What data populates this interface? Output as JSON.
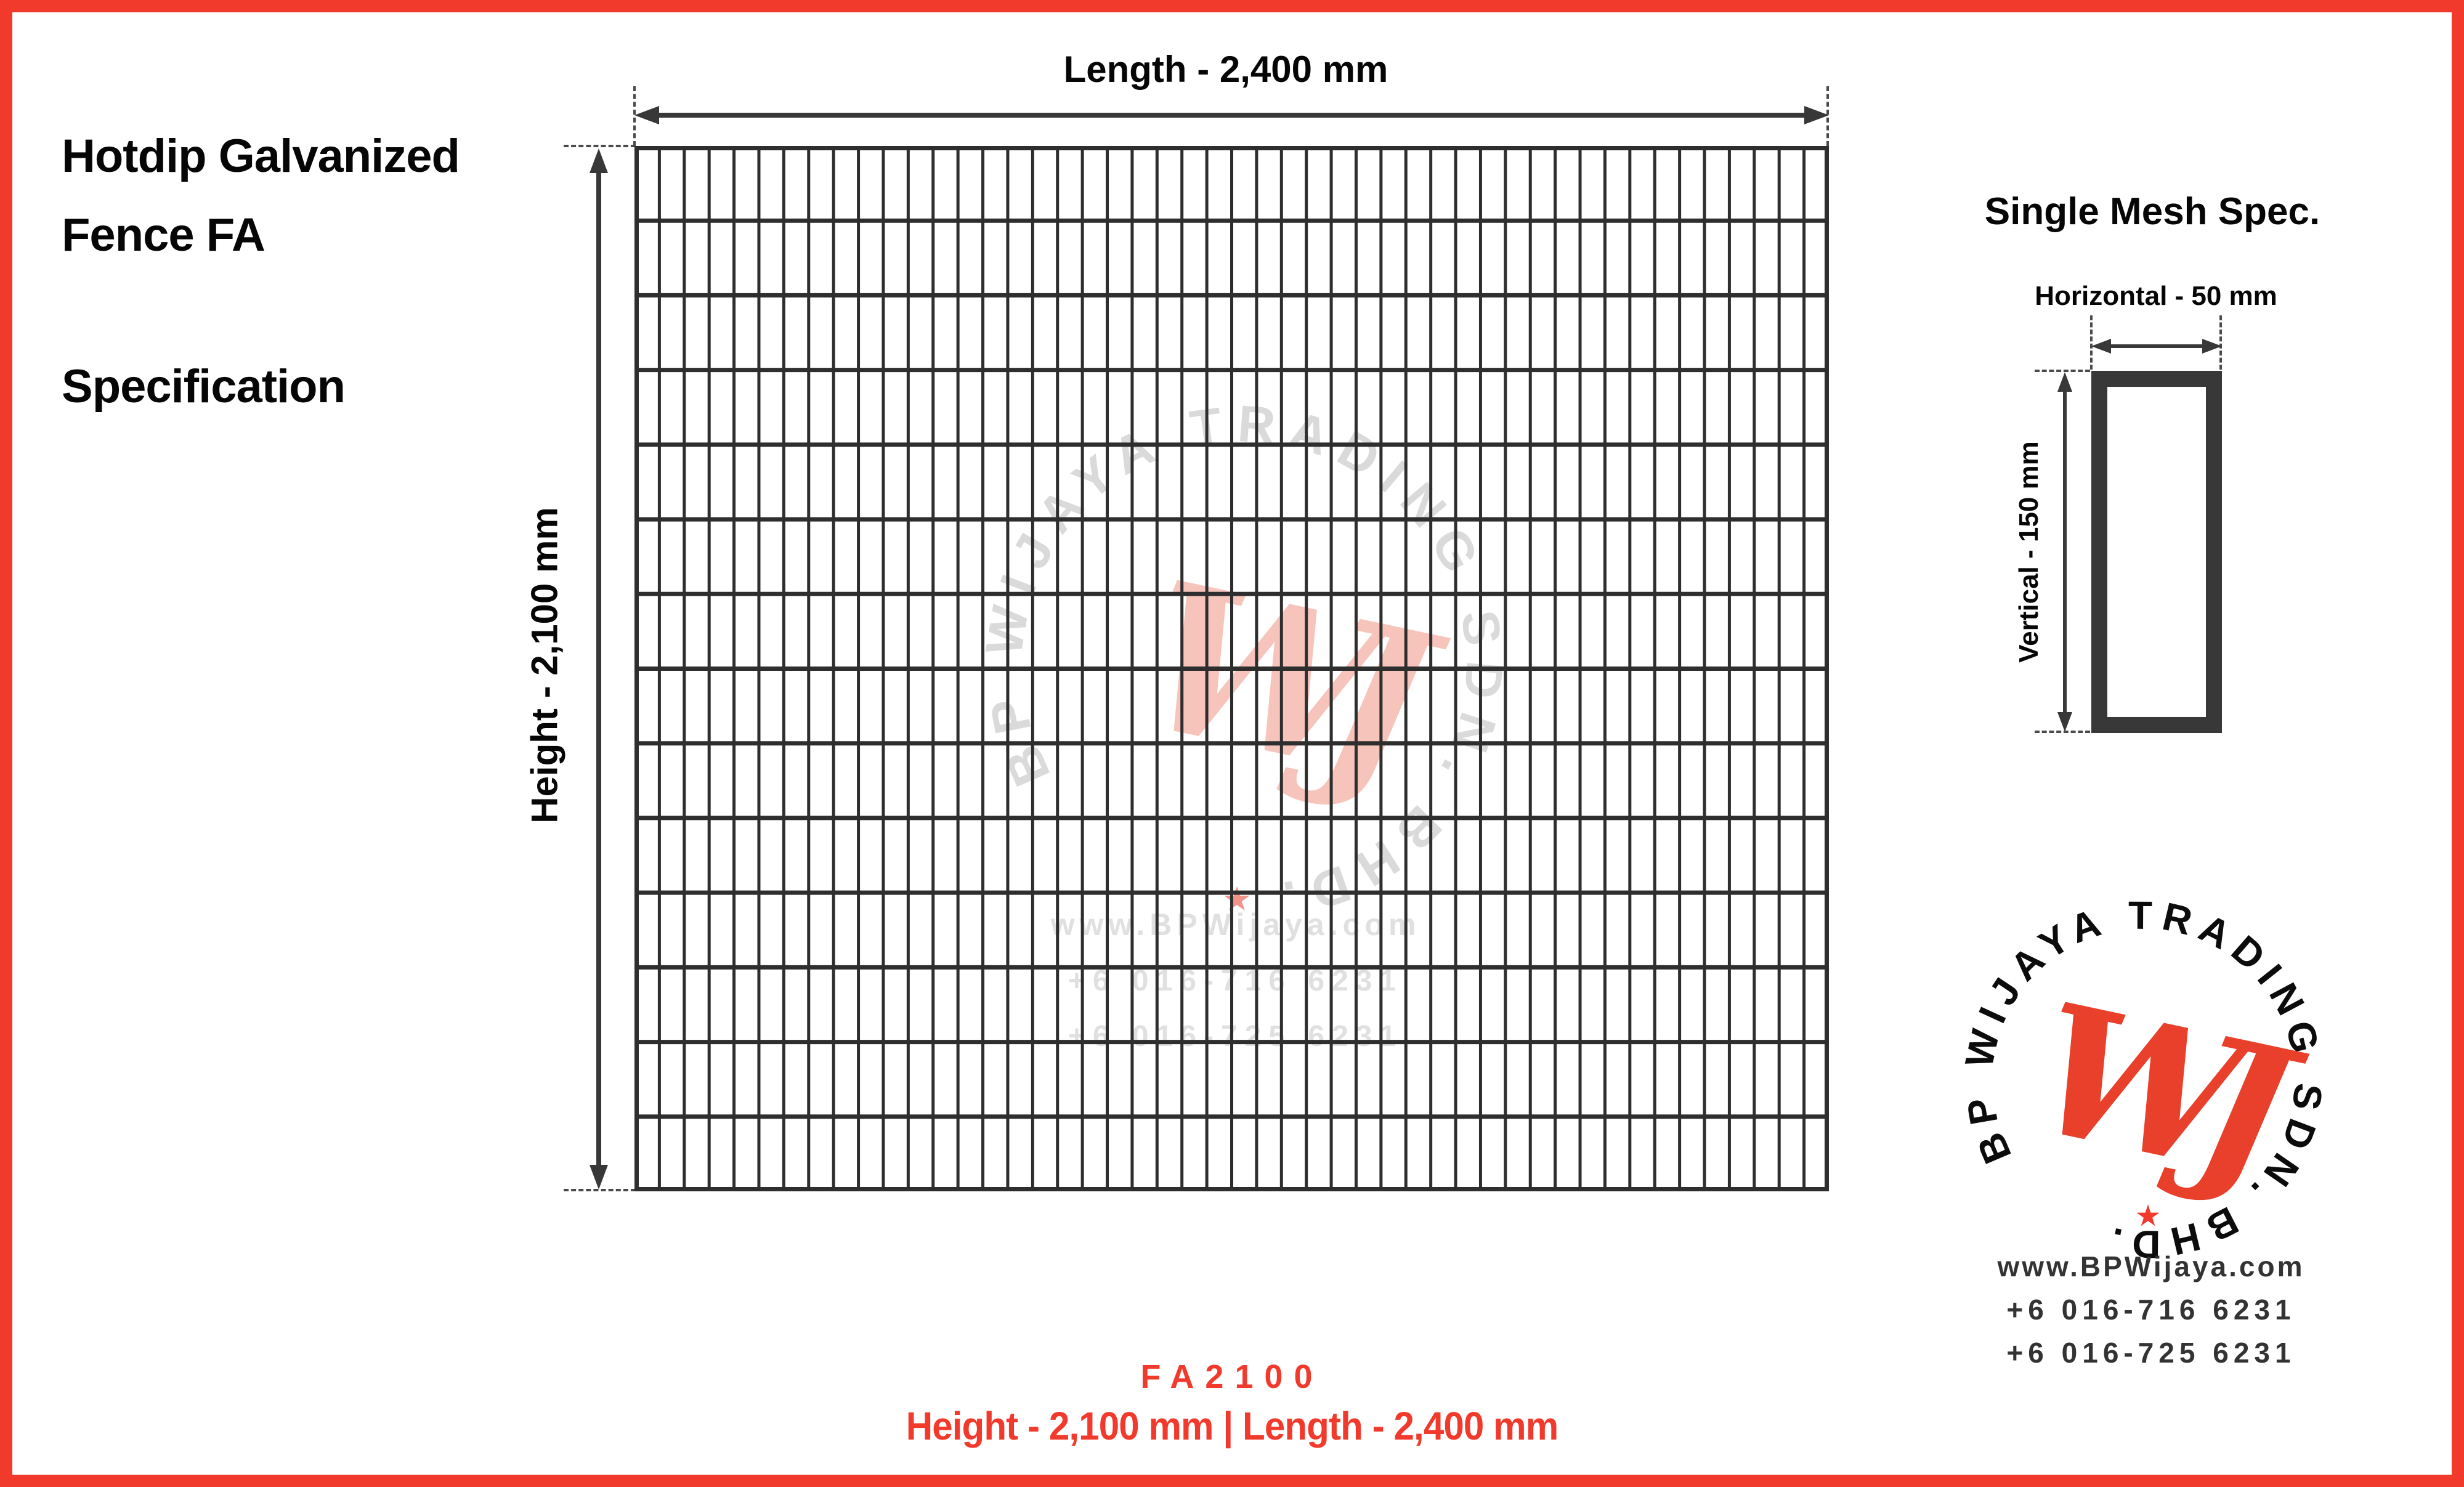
{
  "page": {
    "title_line1": "Hotdip Galvanized",
    "title_line2": "Fence FA",
    "subtitle": "Specification",
    "colors": {
      "accent_red": "#F23A2C",
      "drawing_ink": "#2E2E2E",
      "watermark_gray": "#DADADA",
      "watermark_pink": "#F7C4BC"
    }
  },
  "fence_diagram": {
    "length_label": "Length - 2,400 mm",
    "height_label": "Height - 2,100 mm",
    "grid": {
      "columns": 48,
      "rows": 14
    }
  },
  "single_mesh": {
    "title": "Single Mesh Spec.",
    "horizontal_label": "Horizontal - 50 mm",
    "vertical_label": "Vertical - 150 mm"
  },
  "watermark": {
    "arc_text": "BP WIJAYA TRADING SDN. BHD.",
    "monogram": "WJ",
    "star": "★",
    "website": "www.BPWijaya.com",
    "phone1": "+6 016-716 6231",
    "phone2": "+6 016-725 6231"
  },
  "logo": {
    "arc_text": "BP WIJAYA TRADING SDN. BHD.",
    "monogram": "WJ",
    "star": "★",
    "website": "www.BPWijaya.com",
    "phone1": "+6 016-716 6231",
    "phone2": "+6 016-725 6231"
  },
  "footer": {
    "model": "FA2100",
    "dimensions": "Height - 2,100 mm | Length - 2,400 mm"
  }
}
